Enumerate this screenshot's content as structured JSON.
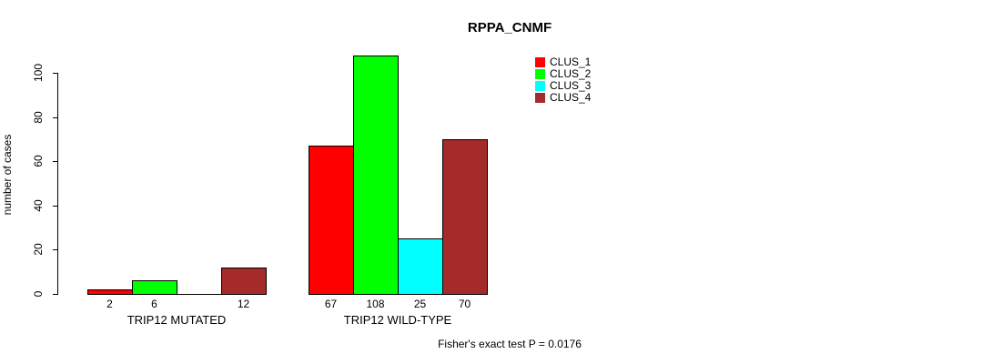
{
  "chart_data": {
    "type": "bar",
    "title": "RPPA_CNMF",
    "ylabel": "number of cases",
    "categories": [
      "TRIP12 MUTATED",
      "TRIP12 WILD-TYPE"
    ],
    "series": [
      {
        "name": "CLUS_1",
        "color": "#ff0000",
        "values": [
          2,
          67
        ]
      },
      {
        "name": "CLUS_2",
        "color": "#00ff00",
        "values": [
          6,
          108
        ]
      },
      {
        "name": "CLUS_3",
        "color": "#00ffff",
        "values": [
          0,
          25
        ]
      },
      {
        "name": "CLUS_4",
        "color": "#a52a2a",
        "values": [
          12,
          70
        ]
      }
    ],
    "bar_value_labels": [
      [
        "2",
        "6",
        "",
        "12"
      ],
      [
        "67",
        "108",
        "25",
        "70"
      ]
    ],
    "yticks": [
      0,
      20,
      40,
      60,
      80,
      100
    ],
    "ylim": [
      0,
      110
    ],
    "grid": false,
    "legend_position": "top-right-outside",
    "annotation": "Fisher's exact test P = 0.0176"
  }
}
